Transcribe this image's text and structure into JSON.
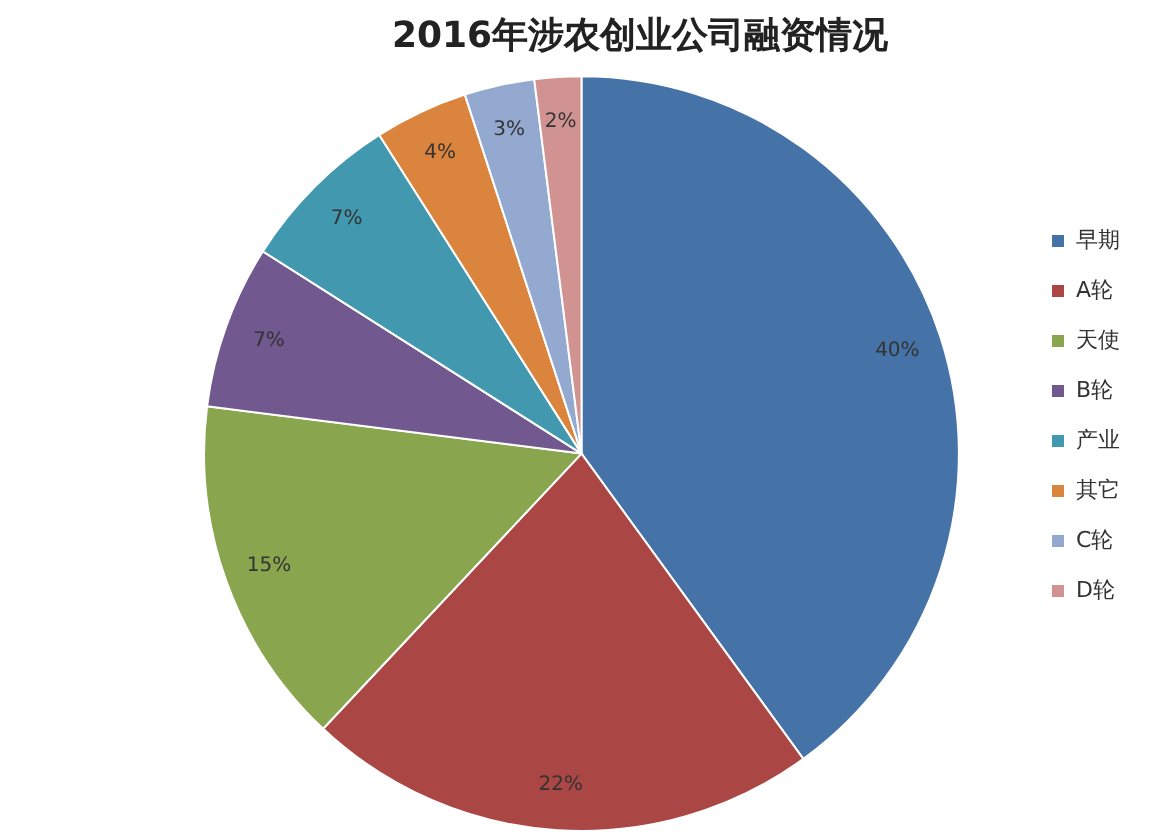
{
  "chart_data": {
    "type": "pie",
    "title": "2016年涉农创业公司融资情况",
    "categories": [
      "早期",
      "A轮",
      "天使",
      "B轮",
      "产业",
      "其它",
      "C轮",
      "D轮"
    ],
    "values": [
      40,
      22,
      15,
      7,
      7,
      4,
      3,
      2
    ],
    "value_labels": [
      "40%",
      "22%",
      "15%",
      "7%",
      "7%",
      "4%",
      "3%",
      "2%"
    ],
    "colors": [
      "#4572a7",
      "#aa4643",
      "#89a54e",
      "#71588f",
      "#4198af",
      "#db843d",
      "#93a9cf",
      "#d19392"
    ],
    "legend": "right"
  }
}
